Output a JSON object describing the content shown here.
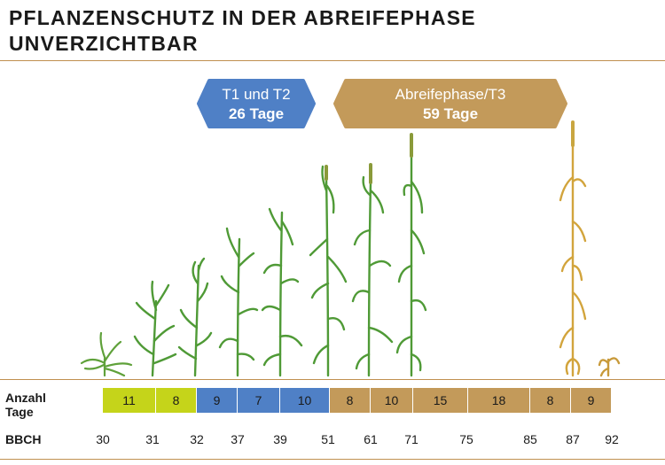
{
  "title": {
    "line1": "PFLANZENSCHUTZ IN DER ABREIFEPHASE",
    "line2": "UNVERZICHTBAR"
  },
  "badges": {
    "t1t2": {
      "line1": "T1 und T2",
      "line2": "26 Tage",
      "color": "#4f80c6"
    },
    "abreife": {
      "line1": "Abreifephase/T3",
      "line2": "59 Tage",
      "color": "#c39a5a"
    }
  },
  "colors": {
    "rule": "#c09050",
    "green_stage": "#c5d41a",
    "blue_stage": "#4f80c6",
    "brown_stage": "#c39a5a"
  },
  "rows": {
    "days_label_line1": "Anzahl",
    "days_label_line2": "Tage",
    "bbch_label": "BBCH"
  },
  "days": [
    {
      "value": "11",
      "phase": "green"
    },
    {
      "value": "8",
      "phase": "green"
    },
    {
      "value": "9",
      "phase": "blue"
    },
    {
      "value": "7",
      "phase": "blue"
    },
    {
      "value": "10",
      "phase": "blue"
    },
    {
      "value": "8",
      "phase": "brown"
    },
    {
      "value": "10",
      "phase": "brown"
    },
    {
      "value": "15",
      "phase": "brown"
    },
    {
      "value": "18",
      "phase": "brown"
    },
    {
      "value": "8",
      "phase": "brown"
    },
    {
      "value": "9",
      "phase": "brown"
    }
  ],
  "bbch": [
    "30",
    "31",
    "32",
    "37",
    "39",
    "51",
    "61",
    "71",
    "75",
    "85",
    "87",
    "92"
  ]
}
